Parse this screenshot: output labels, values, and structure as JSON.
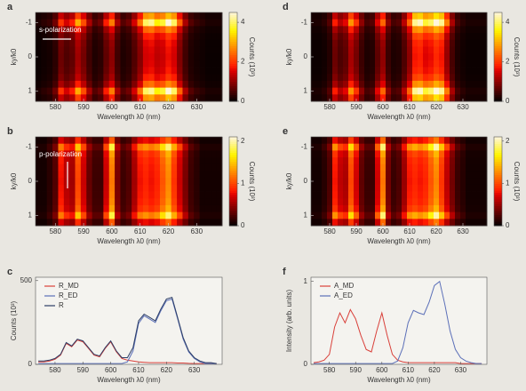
{
  "chart_data": [
    {
      "type": "heatmap",
      "label": "a",
      "annotation": "s-polarization",
      "xlabel": "Wavelength λ0 (nm)",
      "ylabel": "ky/k0",
      "clabel": "Counts (10³)",
      "x": [
        574,
        576,
        578,
        580,
        582,
        584,
        586,
        588,
        590,
        592,
        594,
        596,
        598,
        600,
        602,
        604,
        606,
        608,
        610,
        612,
        614,
        616,
        618,
        620,
        622,
        624,
        626,
        628,
        630,
        632,
        634,
        636,
        638
      ],
      "spectrum": [
        0.2,
        0.3,
        0.4,
        0.8,
        2.0,
        1.5,
        1.8,
        3.0,
        2.2,
        1.2,
        0.6,
        0.8,
        1.8,
        2.6,
        1.2,
        0.6,
        0.8,
        1.5,
        2.5,
        4.0,
        4.2,
        3.6,
        3.8,
        4.5,
        4.0,
        2.4,
        1.2,
        0.6,
        0.4,
        0.3,
        0.2,
        0.2,
        0.2
      ],
      "y": [
        -1.2,
        -1.0,
        -0.8,
        -0.6,
        -0.4,
        -0.2,
        0,
        0.2,
        0.4,
        0.6,
        0.8,
        1.0,
        1.2
      ],
      "profile": [
        0.7,
        1.0,
        0.6,
        0.45,
        0.4,
        0.38,
        0.37,
        0.38,
        0.4,
        0.45,
        0.6,
        1.0,
        0.7
      ],
      "xlim": [
        573,
        639
      ],
      "ylim": [
        -1.3,
        1.3
      ],
      "y_inverted": true,
      "xticks": [
        580,
        590,
        600,
        610,
        620,
        630
      ],
      "yticks": [
        -1,
        0,
        1
      ],
      "clim": [
        0,
        4.5
      ],
      "cticks": [
        0,
        2,
        4
      ]
    },
    {
      "type": "heatmap",
      "label": "b",
      "annotation": "p-polarization",
      "xlabel": "Wavelength λ0 (nm)",
      "ylabel": "ky/k0",
      "clabel": "Counts (10³)",
      "x": [
        574,
        576,
        578,
        580,
        582,
        584,
        586,
        588,
        590,
        592,
        594,
        596,
        598,
        600,
        602,
        604,
        606,
        608,
        610,
        612,
        614,
        616,
        618,
        620,
        622,
        624,
        626,
        628,
        630,
        632,
        634,
        636,
        638
      ],
      "spectrum": [
        0.1,
        0.1,
        0.2,
        0.4,
        1.2,
        0.9,
        0.8,
        1.5,
        1.0,
        0.5,
        0.3,
        0.3,
        1.0,
        1.8,
        0.6,
        0.3,
        0.4,
        0.8,
        1.2,
        1.3,
        1.2,
        1.3,
        1.6,
        1.9,
        1.4,
        1.0,
        0.6,
        0.3,
        0.2,
        0.1,
        0.1,
        0.1,
        0.1
      ],
      "y": [
        -1.2,
        -1.0,
        -0.8,
        -0.6,
        -0.4,
        -0.2,
        0,
        0.2,
        0.4,
        0.6,
        0.8,
        1.0,
        1.2
      ],
      "profile": [
        0.6,
        1.0,
        0.75,
        0.7,
        0.68,
        0.67,
        0.66,
        0.67,
        0.68,
        0.7,
        0.75,
        1.0,
        0.6
      ],
      "xlim": [
        573,
        639
      ],
      "ylim": [
        -1.3,
        1.3
      ],
      "y_inverted": true,
      "xticks": [
        580,
        590,
        600,
        610,
        620,
        630
      ],
      "yticks": [
        -1,
        0,
        1
      ],
      "clim": [
        0,
        2.1
      ],
      "cticks": [
        0,
        1,
        2
      ]
    },
    {
      "type": "line",
      "label": "c",
      "xlabel": "Wavelength λ0 (nm)",
      "ylabel": "Counts (10³)",
      "legend": "upper left",
      "x": [
        574,
        576,
        578,
        580,
        582,
        584,
        586,
        588,
        590,
        592,
        594,
        596,
        598,
        600,
        602,
        604,
        606,
        608,
        610,
        612,
        614,
        616,
        618,
        620,
        622,
        624,
        626,
        628,
        630,
        632,
        634,
        636,
        638
      ],
      "series": [
        {
          "name": "R_MD",
          "color": "#d9403a",
          "values": [
            15,
            15,
            20,
            30,
            55,
            125,
            105,
            145,
            135,
            95,
            55,
            45,
            95,
            135,
            75,
            35,
            25,
            20,
            15,
            12,
            10,
            10,
            10,
            10,
            10,
            8,
            8,
            6,
            5,
            5,
            5,
            5,
            5
          ]
        },
        {
          "name": "R_ED",
          "color": "#5b6fb8",
          "values": [
            5,
            5,
            5,
            5,
            5,
            5,
            5,
            5,
            5,
            5,
            5,
            5,
            5,
            5,
            5,
            5,
            15,
            80,
            245,
            290,
            270,
            250,
            320,
            380,
            390,
            272,
            152,
            74,
            35,
            15,
            5,
            5,
            3
          ]
        },
        {
          "name": "R",
          "color": "#2c3e66",
          "values": [
            20,
            20,
            25,
            35,
            60,
            130,
            110,
            150,
            140,
            100,
            60,
            50,
            100,
            140,
            80,
            40,
            40,
            100,
            260,
            300,
            280,
            260,
            330,
            390,
            400,
            280,
            160,
            80,
            40,
            20,
            10,
            10,
            5
          ]
        }
      ],
      "xlim": [
        573,
        640
      ],
      "ylim": [
        0,
        520
      ],
      "xticks": [
        580,
        590,
        600,
        610,
        620,
        630
      ],
      "yticks": [
        0,
        500
      ]
    },
    {
      "type": "heatmap",
      "label": "d",
      "xlabel": "Wavelength λ0 (nm)",
      "ylabel": "ky/k0",
      "clabel": "Counts (10³)",
      "x": [
        574,
        576,
        578,
        580,
        582,
        584,
        586,
        588,
        590,
        592,
        594,
        596,
        598,
        600,
        602,
        604,
        606,
        608,
        610,
        612,
        614,
        616,
        618,
        620,
        622,
        624,
        626,
        628,
        630,
        632,
        634,
        636,
        638
      ],
      "spectrum": [
        0.2,
        0.2,
        0.3,
        0.6,
        1.8,
        1.3,
        1.6,
        2.8,
        2.0,
        1.0,
        0.5,
        0.6,
        1.6,
        2.4,
        1.0,
        0.5,
        0.6,
        1.3,
        2.4,
        4.2,
        4.4,
        3.8,
        4.0,
        4.6,
        4.2,
        2.6,
        1.2,
        0.5,
        0.3,
        0.2,
        0.2,
        0.2,
        0.2
      ],
      "y": [
        -1.2,
        -1.0,
        -0.8,
        -0.6,
        -0.4,
        -0.2,
        0,
        0.2,
        0.4,
        0.6,
        0.8,
        1.0,
        1.2
      ],
      "profile": [
        0.75,
        1.0,
        0.65,
        0.5,
        0.44,
        0.42,
        0.41,
        0.42,
        0.44,
        0.5,
        0.65,
        1.0,
        0.75
      ],
      "xlim": [
        573,
        639
      ],
      "ylim": [
        -1.3,
        1.3
      ],
      "y_inverted": true,
      "xticks": [
        580,
        590,
        600,
        610,
        620,
        630
      ],
      "yticks": [
        -1,
        0,
        1
      ],
      "clim": [
        0,
        4.5
      ],
      "cticks": [
        0,
        2,
        4
      ]
    },
    {
      "type": "heatmap",
      "label": "e",
      "xlabel": "Wavelength λ0 (nm)",
      "ylabel": "ky/k0",
      "clabel": "Counts (10³)",
      "x": [
        574,
        576,
        578,
        580,
        582,
        584,
        586,
        588,
        590,
        592,
        594,
        596,
        598,
        600,
        602,
        604,
        606,
        608,
        610,
        612,
        614,
        616,
        618,
        620,
        622,
        624,
        626,
        628,
        630,
        632,
        634,
        636,
        638
      ],
      "spectrum": [
        0.1,
        0.1,
        0.2,
        0.4,
        1.3,
        1.0,
        0.9,
        1.6,
        1.1,
        0.5,
        0.3,
        0.3,
        1.1,
        1.9,
        0.6,
        0.3,
        0.4,
        0.8,
        1.3,
        1.4,
        1.3,
        1.4,
        1.7,
        2.0,
        1.5,
        1.0,
        0.6,
        0.3,
        0.2,
        0.1,
        0.1,
        0.1,
        0.1
      ],
      "y": [
        -1.2,
        -1.0,
        -0.8,
        -0.6,
        -0.4,
        -0.2,
        0,
        0.2,
        0.4,
        0.6,
        0.8,
        1.0,
        1.2
      ],
      "profile": [
        0.6,
        1.0,
        0.72,
        0.66,
        0.64,
        0.63,
        0.62,
        0.63,
        0.64,
        0.66,
        0.72,
        1.0,
        0.6
      ],
      "xlim": [
        573,
        639
      ],
      "ylim": [
        -1.3,
        1.3
      ],
      "y_inverted": true,
      "xticks": [
        580,
        590,
        600,
        610,
        620,
        630
      ],
      "yticks": [
        -1,
        0,
        1
      ],
      "clim": [
        0,
        2.1
      ],
      "cticks": [
        0,
        1,
        2
      ]
    },
    {
      "type": "line",
      "label": "f",
      "xlabel": "Wavelength λ0 (nm)",
      "ylabel": "Intensity (arb. units)",
      "legend": "upper left",
      "x": [
        574,
        576,
        578,
        580,
        582,
        584,
        586,
        588,
        590,
        592,
        594,
        596,
        598,
        600,
        602,
        604,
        606,
        608,
        610,
        612,
        614,
        616,
        618,
        620,
        622,
        624,
        626,
        628,
        630,
        632,
        634,
        636,
        638
      ],
      "series": [
        {
          "name": "A_MD",
          "color": "#d9403a",
          "values": [
            0.02,
            0.03,
            0.05,
            0.12,
            0.45,
            0.62,
            0.5,
            0.66,
            0.55,
            0.35,
            0.18,
            0.15,
            0.4,
            0.62,
            0.35,
            0.12,
            0.05,
            0.03,
            0.02,
            0.02,
            0.02,
            0.02,
            0.02,
            0.02,
            0.02,
            0.02,
            0.02,
            0.02,
            0.01,
            0.01,
            0.01,
            0.01,
            0.01
          ]
        },
        {
          "name": "A_ED",
          "color": "#5b6fb8",
          "values": [
            0.01,
            0.01,
            0.01,
            0.01,
            0.01,
            0.01,
            0.01,
            0.01,
            0.01,
            0.01,
            0.01,
            0.01,
            0.01,
            0.01,
            0.01,
            0.01,
            0.04,
            0.2,
            0.5,
            0.65,
            0.62,
            0.6,
            0.75,
            0.95,
            1.0,
            0.72,
            0.4,
            0.18,
            0.08,
            0.04,
            0.02,
            0.01,
            0.01
          ]
        }
      ],
      "xlim": [
        573,
        640
      ],
      "ylim": [
        0,
        1.05
      ],
      "xticks": [
        580,
        590,
        600,
        610,
        620,
        630
      ],
      "yticks": [
        0,
        1
      ]
    }
  ]
}
